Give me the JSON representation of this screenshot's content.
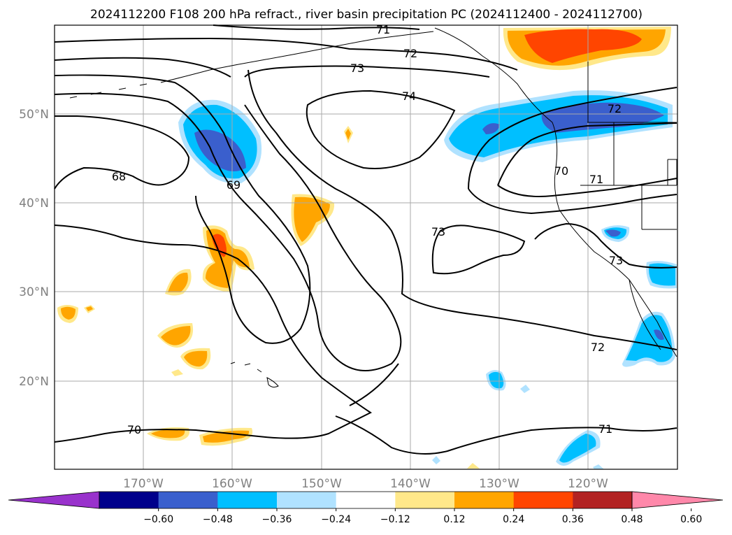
{
  "title": "2024112200 F108 200 hPa refract., river basin precipitation PC (2024112400 - 2024112700)",
  "lat_labels": [
    "50°N",
    "40°N",
    "30°N",
    "20°N"
  ],
  "lon_labels": [
    "170°W",
    "160°W",
    "150°W",
    "140°W",
    "130°W",
    "120°W"
  ],
  "contour_labels": {
    "c71_top": "71",
    "c72_top": "72",
    "c73_top": "73",
    "c74": "74",
    "c72_right": "72",
    "c68": "68",
    "c69": "69",
    "c70_ne": "70",
    "c71_ne": "71",
    "c73_mid": "73",
    "c73_coast": "73",
    "c72_south": "72",
    "c70_south": "70",
    "c71_south": "71"
  },
  "colorbar": {
    "ticks": [
      "−0.60",
      "−0.48",
      "−0.36",
      "−0.24",
      "−0.12",
      "0.12",
      "0.24",
      "0.36",
      "0.48",
      "0.60"
    ],
    "colors": [
      "#9932cc",
      "#00008b",
      "#3a5fcd",
      "#00bfff",
      "#b0e2ff",
      "#ffffff",
      "#ffe88a",
      "#ffa500",
      "#ff4500",
      "#b22222",
      "#ff88aa"
    ]
  },
  "colors": {
    "gridline": "#aaaaaa",
    "frame": "#000000",
    "contour": "#000000"
  }
}
